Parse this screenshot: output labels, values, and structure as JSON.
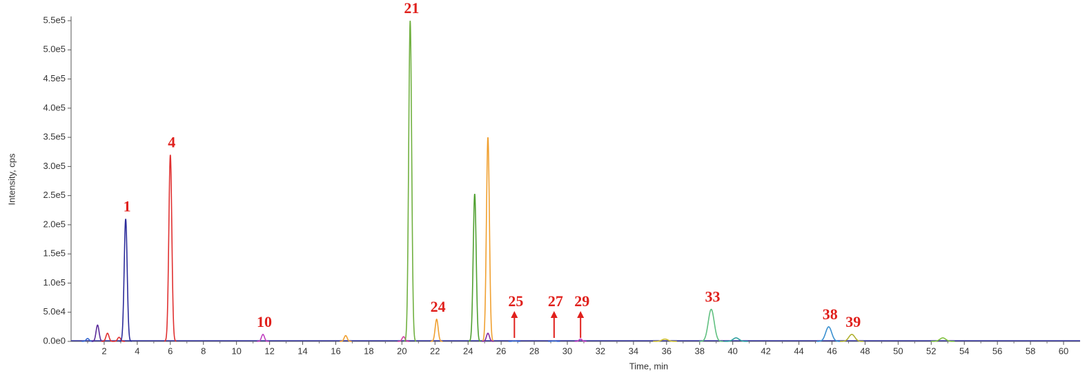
{
  "chart_data": {
    "type": "chromatogram",
    "x_label": "Time, min",
    "y_label": "Intensity, cps",
    "xlim": [
      0,
      61
    ],
    "ylim": [
      0,
      555000
    ],
    "xticks": [
      2,
      4,
      6,
      8,
      10,
      12,
      14,
      16,
      18,
      20,
      22,
      24,
      26,
      28,
      30,
      32,
      34,
      36,
      38,
      40,
      42,
      44,
      46,
      48,
      50,
      52,
      54,
      56,
      58,
      60
    ],
    "yticks": [
      {
        "value": 0,
        "label": "0.0e0"
      },
      {
        "value": 50000,
        "label": "5.0e4"
      },
      {
        "value": 100000,
        "label": "1.0e5"
      },
      {
        "value": 150000,
        "label": "1.5e5"
      },
      {
        "value": 200000,
        "label": "2.0e5"
      },
      {
        "value": 250000,
        "label": "2.5e5"
      },
      {
        "value": 300000,
        "label": "3.0e5"
      },
      {
        "value": 350000,
        "label": "3.5e5"
      },
      {
        "value": 400000,
        "label": "4.0e5"
      },
      {
        "value": 450000,
        "label": "4.5e5"
      },
      {
        "value": 500000,
        "label": "5.0e5"
      },
      {
        "value": 550000,
        "label": "5.5e5"
      }
    ],
    "baseline_color": "#3a3aa8",
    "peaks": [
      {
        "x": 1.0,
        "value": 5000,
        "color": "#3a6ad0"
      },
      {
        "x": 1.6,
        "value": 28000,
        "color": "#5a2a9a"
      },
      {
        "x": 2.2,
        "value": 14000,
        "color": "#e03030"
      },
      {
        "x": 2.9,
        "value": 7000,
        "color": "#e03030"
      },
      {
        "x": 3.3,
        "value": 210000,
        "color": "#2b2b9a",
        "label": "1"
      },
      {
        "x": 6.0,
        "value": 320000,
        "color": "#e03030",
        "label": "4"
      },
      {
        "x": 11.6,
        "value": 12000,
        "color": "#c040c0",
        "label": "10"
      },
      {
        "x": 16.6,
        "value": 10000,
        "color": "#f0a030"
      },
      {
        "x": 20.1,
        "value": 8000,
        "color": "#d040a0"
      },
      {
        "x": 20.5,
        "value": 550000,
        "color": "#70b040",
        "label": "21"
      },
      {
        "x": 22.1,
        "value": 38000,
        "color": "#f0a030",
        "label": "24"
      },
      {
        "x": 24.4,
        "value": 253000,
        "color": "#50a030"
      },
      {
        "x": 25.2,
        "value": 350000,
        "color": "#f0a030"
      },
      {
        "x": 25.2,
        "value": 14000,
        "color": "#8a2aa0"
      },
      {
        "x": 26.8,
        "value": 1000,
        "color": "#3a6ad0",
        "label": "25",
        "arrow": true
      },
      {
        "x": 29.2,
        "value": 1000,
        "color": "#3a6ad0",
        "label": "27",
        "arrow": true
      },
      {
        "x": 30.8,
        "value": 4000,
        "color": "#c040c0",
        "label": "29",
        "arrow": true
      },
      {
        "x": 35.9,
        "value": 4000,
        "color": "#d0c030"
      },
      {
        "x": 38.7,
        "value": 55000,
        "color": "#60c080",
        "label": "33"
      },
      {
        "x": 40.2,
        "value": 6000,
        "color": "#30a0a0"
      },
      {
        "x": 45.8,
        "value": 25000,
        "color": "#3a90d0",
        "label": "38"
      },
      {
        "x": 47.2,
        "value": 12000,
        "color": "#b0b030",
        "label": "39"
      },
      {
        "x": 52.7,
        "value": 6000,
        "color": "#80c040"
      }
    ]
  }
}
